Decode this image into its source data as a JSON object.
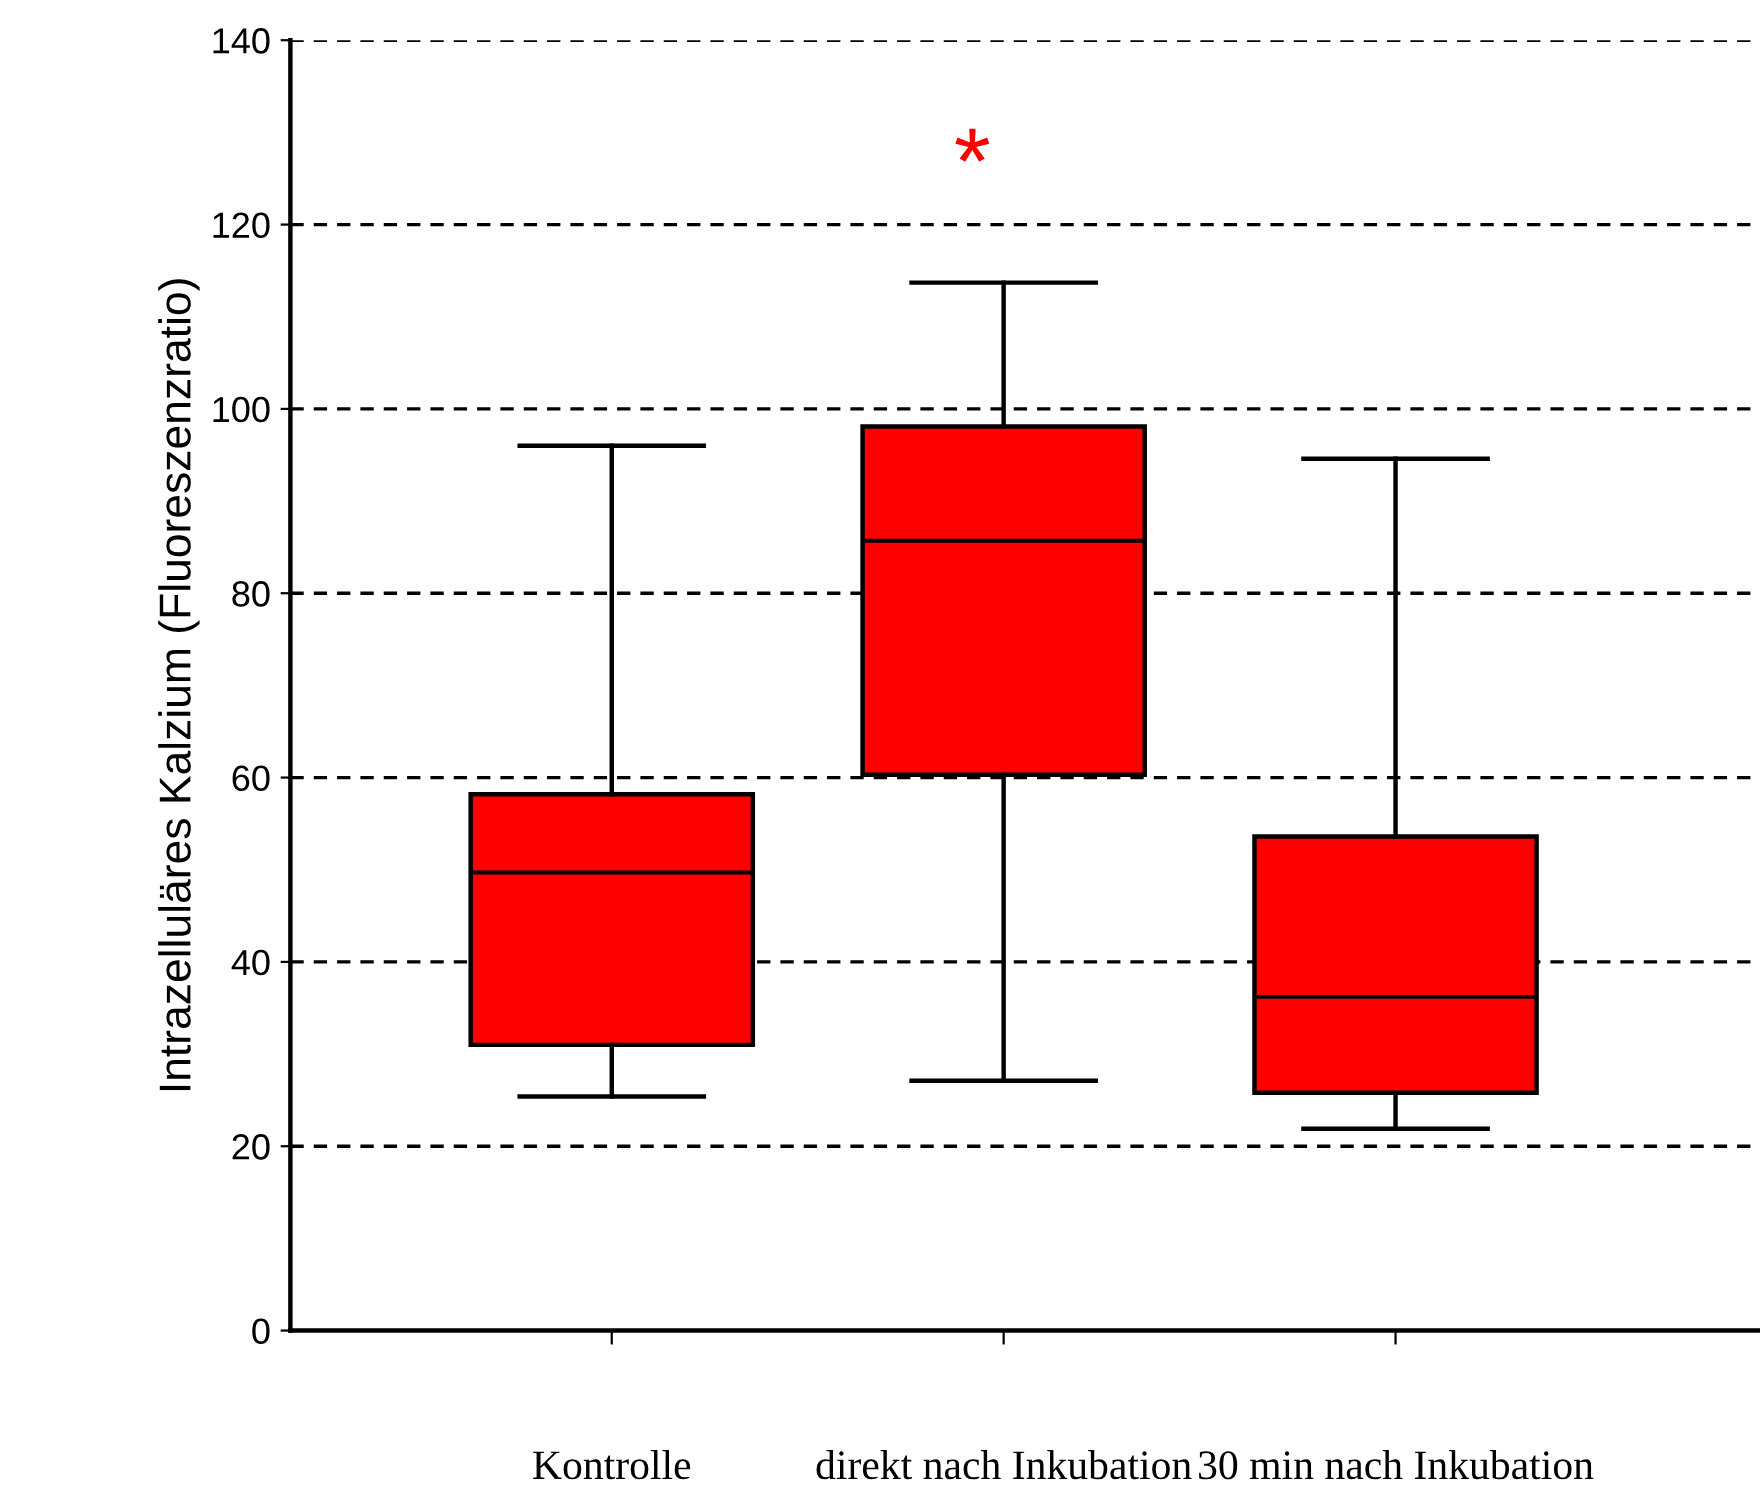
{
  "chart_data": {
    "type": "box",
    "categories": [
      "Kontrolle",
      "direkt nach Inkubation",
      "30 min nach Inkubation"
    ],
    "ylabel": "Intrazelluläres Kalzium (Fluoreszenzratio)",
    "color": "#ff0000",
    "boxes": [
      {
        "low": 25.4,
        "q1": 31,
        "median": 49.7,
        "q3": 58.2,
        "high": 96
      },
      {
        "low": 27.1,
        "q1": 60.3,
        "median": 85.7,
        "q3": 98.1,
        "high": 113.7
      },
      {
        "low": 21.9,
        "q1": 25.8,
        "median": 36.2,
        "q3": 53.6,
        "high": 94.6
      }
    ],
    "ylim": [
      0,
      140
    ],
    "yticks": [
      0,
      20,
      40,
      60,
      80,
      100,
      120,
      140
    ],
    "grid": "y",
    "line_style": "dashed",
    "annotations": [
      "*"
    ]
  }
}
